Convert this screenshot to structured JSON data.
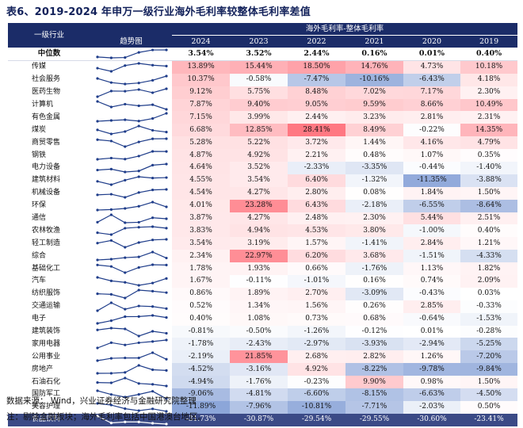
{
  "title": "表6、2019-2024 年申万一级行业海外毛利率较整体毛利率差值",
  "header": {
    "industry": "一级行业",
    "trend": "趋势图",
    "group": "海外毛利率-整体毛利率",
    "years": [
      "2024",
      "2023",
      "2022",
      "2021",
      "2020",
      "2019"
    ]
  },
  "median": {
    "label": "中位数",
    "values": [
      "3.54%",
      "3.52%",
      "2.44%",
      "0.16%",
      "0.01%",
      "0.40%"
    ]
  },
  "rows": [
    {
      "name": "传媒",
      "values": [
        "13.89%",
        "15.44%",
        "18.50%",
        "14.76%",
        "4.73%",
        "10.18%"
      ]
    },
    {
      "name": "社会服务",
      "values": [
        "10.37%",
        "-0.58%",
        "-7.47%",
        "-10.16%",
        "-6.43%",
        "4.18%"
      ]
    },
    {
      "name": "医药生物",
      "values": [
        "9.12%",
        "5.75%",
        "8.48%",
        "7.02%",
        "7.17%",
        "2.30%"
      ]
    },
    {
      "name": "计算机",
      "values": [
        "7.87%",
        "9.40%",
        "9.05%",
        "9.59%",
        "8.66%",
        "10.49%"
      ]
    },
    {
      "name": "有色金属",
      "values": [
        "7.15%",
        "3.99%",
        "2.44%",
        "3.23%",
        "2.81%",
        "2.31%"
      ]
    },
    {
      "name": "煤炭",
      "values": [
        "6.68%",
        "12.85%",
        "28.41%",
        "8.49%",
        "-0.22%",
        "14.35%"
      ]
    },
    {
      "name": "商贸零售",
      "values": [
        "5.28%",
        "5.22%",
        "3.72%",
        "1.44%",
        "4.16%",
        "4.79%"
      ]
    },
    {
      "name": "钢铁",
      "values": [
        "4.87%",
        "4.92%",
        "2.21%",
        "0.48%",
        "1.07%",
        "0.35%"
      ]
    },
    {
      "name": "电力设备",
      "values": [
        "4.64%",
        "3.52%",
        "-2.33%",
        "-3.35%",
        "-0.44%",
        "-1.40%"
      ]
    },
    {
      "name": "建筑材料",
      "values": [
        "4.55%",
        "3.54%",
        "6.40%",
        "-1.32%",
        "-11.35%",
        "-3.88%"
      ]
    },
    {
      "name": "机械设备",
      "values": [
        "4.54%",
        "4.27%",
        "2.80%",
        "0.08%",
        "1.84%",
        "1.50%"
      ]
    },
    {
      "name": "环保",
      "values": [
        "4.01%",
        "23.28%",
        "6.43%",
        "-2.18%",
        "-6.55%",
        "-8.64%"
      ]
    },
    {
      "name": "通信",
      "values": [
        "3.87%",
        "4.27%",
        "2.48%",
        "2.30%",
        "5.44%",
        "2.51%"
      ]
    },
    {
      "name": "农林牧渔",
      "values": [
        "3.83%",
        "4.94%",
        "4.53%",
        "3.80%",
        "-1.00%",
        "0.40%"
      ]
    },
    {
      "name": "轻工制造",
      "values": [
        "3.54%",
        "3.19%",
        "1.57%",
        "-1.41%",
        "2.84%",
        "1.21%"
      ]
    },
    {
      "name": "综合",
      "values": [
        "2.34%",
        "22.97%",
        "6.20%",
        "3.68%",
        "-1.51%",
        "-4.33%"
      ]
    },
    {
      "name": "基础化工",
      "values": [
        "1.78%",
        "1.93%",
        "0.66%",
        "-1.76%",
        "1.13%",
        "1.82%"
      ]
    },
    {
      "name": "汽车",
      "values": [
        "1.67%",
        "-0.11%",
        "-1.01%",
        "0.16%",
        "0.74%",
        "2.09%"
      ]
    },
    {
      "name": "纺织服饰",
      "values": [
        "0.86%",
        "1.89%",
        "2.70%",
        "-3.09%",
        "-0.43%",
        "0.03%"
      ]
    },
    {
      "name": "交通运输",
      "values": [
        "0.52%",
        "1.34%",
        "1.56%",
        "0.26%",
        "2.85%",
        "-0.33%"
      ]
    },
    {
      "name": "电子",
      "values": [
        "0.40%",
        "1.08%",
        "0.73%",
        "0.68%",
        "-0.64%",
        "-1.53%"
      ]
    },
    {
      "name": "建筑装饰",
      "values": [
        "-0.81%",
        "-0.50%",
        "-1.26%",
        "-0.12%",
        "0.01%",
        "-0.28%"
      ]
    },
    {
      "name": "家用电器",
      "values": [
        "-1.78%",
        "-2.43%",
        "-2.97%",
        "-3.93%",
        "-2.94%",
        "-5.25%"
      ]
    },
    {
      "name": "公用事业",
      "values": [
        "-2.19%",
        "21.85%",
        "2.68%",
        "2.82%",
        "1.26%",
        "-7.20%"
      ]
    },
    {
      "name": "房地产",
      "values": [
        "-4.52%",
        "-3.16%",
        "4.92%",
        "-8.22%",
        "-9.78%",
        "-9.84%"
      ]
    },
    {
      "name": "石油石化",
      "values": [
        "-4.94%",
        "-1.76%",
        "-0.23%",
        "9.90%",
        "0.98%",
        "1.50%"
      ]
    },
    {
      "name": "国防军工",
      "values": [
        "-9.06%",
        "-4.81%",
        "-6.60%",
        "-8.15%",
        "-6.63%",
        "-4.50%"
      ]
    },
    {
      "name": "美容护理",
      "values": [
        "-11.89%",
        "-7.96%",
        "-10.81%",
        "-7.71%",
        "-2.03%",
        "0.50%"
      ]
    },
    {
      "name": "食品饮料",
      "values": [
        "-31.73%",
        "-30.87%",
        "-29.54%",
        "-29.55%",
        "-30.60%",
        "-23.41%"
      ]
    }
  ],
  "colors": {
    "header": "#1b2c68",
    "positive": "#e8413f",
    "negative": "#3a5bb8",
    "last_row": "#3b4a86",
    "sparkline": "#1f3d8a"
  },
  "footer": {
    "source": "数据来源： Wind，兴业证券经济与金融研究院整理",
    "note": "注：剔除金融板块；海外毛利率包括中国港澳台地区。"
  }
}
